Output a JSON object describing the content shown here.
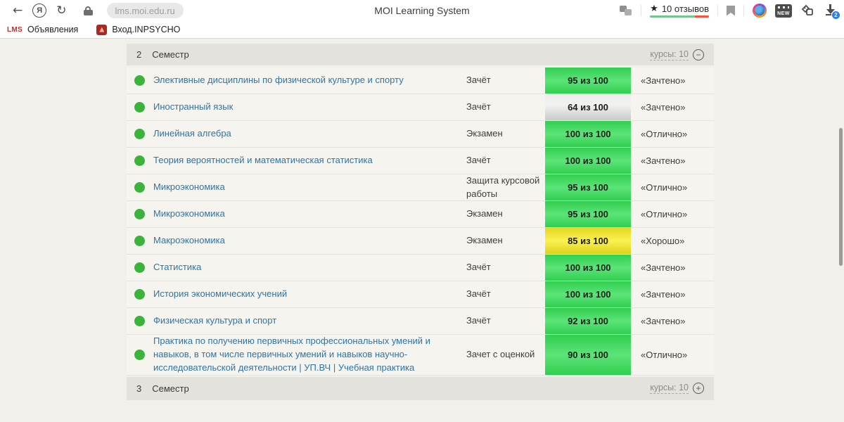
{
  "browser": {
    "title": "MOI Learning System",
    "url": "lms.moi.edu.ru",
    "yandex_letter": "Я",
    "back_glyph": "←",
    "refresh_glyph": "↻",
    "reviews_star": "★",
    "reviews_text": "10 отзывов",
    "new_label": "NEW",
    "downloads_badge": "2"
  },
  "bookmarks": {
    "items": [
      {
        "favicon": "lms-logo",
        "favicon_text": "LMS",
        "label": "Объявления"
      },
      {
        "favicon": "inpsycho-logo",
        "favicon_text": "",
        "label": "Вход.INPSYCHO"
      }
    ]
  },
  "colors": {
    "badge_green": "#3fd65c",
    "badge_gray": "#dcdcdb",
    "badge_yellow": "#f0e22e",
    "dot_green": "#3cb43c",
    "link_blue": "#2e75a3",
    "rating_green": "#72c58f",
    "rating_red": "#f2543f",
    "header_bg": "#e4e2dc",
    "page_bg": "#f1f0eb"
  },
  "sections": {
    "current": {
      "number": "2",
      "label": "Семестр",
      "courses_label": "курсы: 10",
      "toggle": "−"
    },
    "next": {
      "number": "3",
      "label": "Семестр",
      "courses_label": "курсы: 10",
      "toggle": "+"
    }
  },
  "courses": [
    {
      "name": "Элективные дисциплины по физической культуре и спорту",
      "type": "Зачёт",
      "score": "95 из 100",
      "score_color": "green",
      "grade": "«Зачтено»"
    },
    {
      "name": "Иностранный язык",
      "type": "Зачёт",
      "score": "64 из 100",
      "score_color": "gray",
      "grade": "«Зачтено»"
    },
    {
      "name": "Линейная алгебра",
      "type": "Экзамен",
      "score": "100 из 100",
      "score_color": "green",
      "grade": "«Отлично»"
    },
    {
      "name": "Теория вероятностей и математическая статистика",
      "type": "Зачёт",
      "score": "100 из 100",
      "score_color": "green",
      "grade": "«Зачтено»"
    },
    {
      "name": "Микроэкономика",
      "type": "Защита курсовой работы",
      "score": "95 из 100",
      "score_color": "green",
      "grade": "«Отлично»"
    },
    {
      "name": "Микроэкономика",
      "type": "Экзамен",
      "score": "95 из 100",
      "score_color": "green",
      "grade": "«Отлично»"
    },
    {
      "name": "Макроэкономика",
      "type": "Экзамен",
      "score": "85 из 100",
      "score_color": "yellow",
      "grade": "«Хорошо»"
    },
    {
      "name": "Статистика",
      "type": "Зачёт",
      "score": "100 из 100",
      "score_color": "green",
      "grade": "«Зачтено»"
    },
    {
      "name": "История экономических учений",
      "type": "Зачёт",
      "score": "100 из 100",
      "score_color": "green",
      "grade": "«Зачтено»"
    },
    {
      "name": "Физическая культура и спорт",
      "type": "Зачёт",
      "score": "92 из 100",
      "score_color": "green",
      "grade": "«Зачтено»"
    },
    {
      "name": "Практика по получению первичных профессиональных умений и навыков, в том числе первичных умений и навыков научно-исследовательской деятельности | УП.ВЧ | Учебная практика",
      "type": "Зачет с оценкой",
      "score": "90 из 100",
      "score_color": "green",
      "grade": "«Отлично»"
    }
  ]
}
